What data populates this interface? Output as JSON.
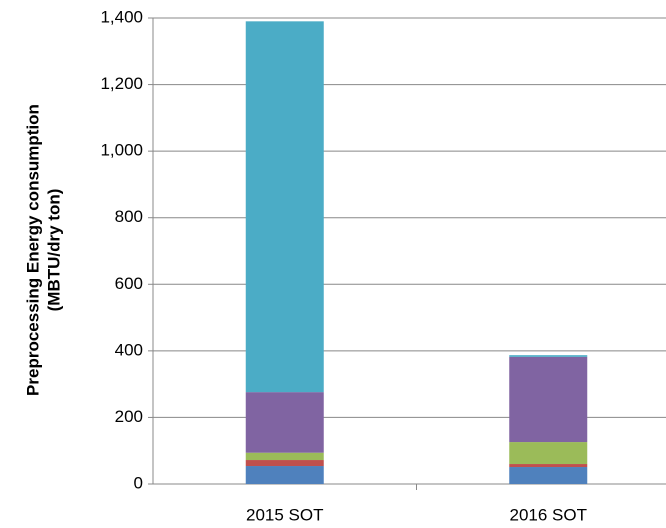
{
  "chart_data": {
    "type": "stacked_bar",
    "y_label": [
      "Preprocessing Energy consumption",
      "(MBTU/dry ton)"
    ],
    "categories": [
      "2015 SOT",
      "2016 SOT"
    ],
    "series": [
      {
        "color": "#4f81bd",
        "values": [
          54,
          51
        ]
      },
      {
        "color": "#c0504d",
        "values": [
          18,
          9
        ]
      },
      {
        "color": "#9bbb59",
        "values": [
          22,
          66
        ]
      },
      {
        "color": "#8064a2",
        "values": [
          182,
          256
        ]
      },
      {
        "color": "#4bacc6",
        "values": [
          1114,
          5
        ]
      }
    ],
    "ylim": [
      0,
      1400
    ],
    "yticks": [
      0,
      200,
      400,
      600,
      800,
      {
        "value": 1000,
        "label": "1,000"
      },
      {
        "value": 1200,
        "label": "1,200"
      },
      {
        "value": 1400,
        "label": "1,400"
      }
    ],
    "grid": true
  }
}
